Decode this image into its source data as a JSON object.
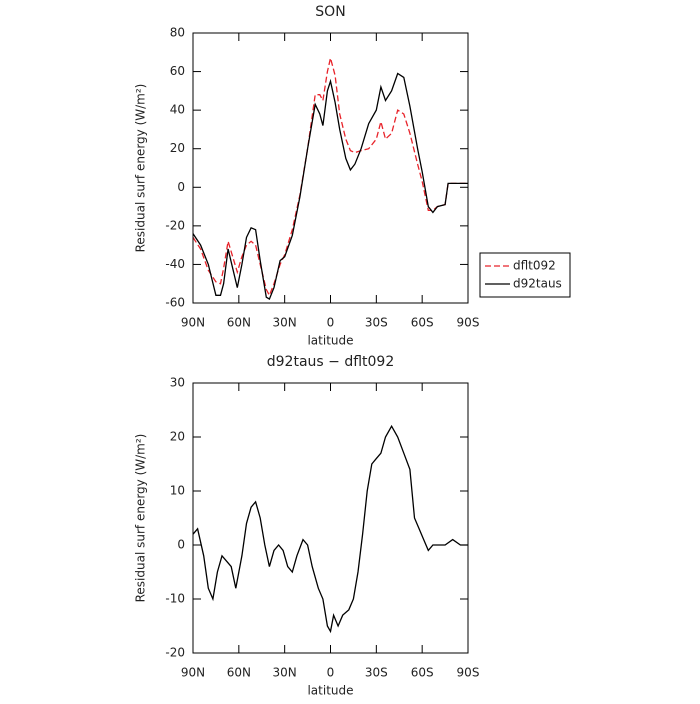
{
  "chart_data": [
    {
      "type": "line",
      "title": "SON",
      "xlabel": "latitude",
      "ylabel": "Residual surf energy (W/m²)",
      "x": [
        90,
        85,
        80,
        75,
        72,
        70,
        67,
        64,
        61,
        58,
        55,
        52,
        49,
        46,
        42,
        40,
        37,
        33,
        30,
        25,
        20,
        15,
        10,
        7,
        5,
        2,
        0,
        -3,
        -6,
        -10,
        -13,
        -16,
        -20,
        -25,
        -30,
        -33,
        -36,
        -40,
        -44,
        -48,
        -52,
        -57,
        -60,
        -64,
        -67,
        -70,
        -75,
        -77,
        -85,
        -90
      ],
      "series": [
        {
          "name": "dflt092",
          "color": "#e8232a",
          "dash": true,
          "values": [
            -26,
            -32,
            -43,
            -49,
            -50,
            -42,
            -28,
            -36,
            -44,
            -36,
            -30,
            -28,
            -30,
            -40,
            -53,
            -56,
            -50,
            -40,
            -35,
            -22,
            -4,
            20,
            48,
            48,
            45,
            60,
            67,
            58,
            38,
            25,
            19,
            18,
            19,
            20,
            25,
            34,
            25,
            28,
            40,
            38,
            28,
            12,
            3,
            -12,
            -12,
            -10,
            -9,
            2,
            2,
            2
          ]
        },
        {
          "name": "d92taus",
          "color": "#000000",
          "dash": false,
          "values": [
            -24,
            -30,
            -40,
            -56,
            -56,
            -50,
            -32,
            -42,
            -52,
            -40,
            -26,
            -21,
            -22,
            -38,
            -57,
            -58,
            -52,
            -38,
            -36,
            -25,
            -5,
            20,
            43,
            38,
            32,
            50,
            55,
            44,
            30,
            15,
            9,
            12,
            20,
            33,
            40,
            52,
            45,
            50,
            59,
            57,
            42,
            20,
            8,
            -10,
            -13,
            -10,
            -9,
            2,
            2,
            2
          ]
        }
      ],
      "xlim": [
        90,
        -90
      ],
      "xticks": [
        {
          "value": 90,
          "label": "90N"
        },
        {
          "value": 60,
          "label": "60N"
        },
        {
          "value": 30,
          "label": "30N"
        },
        0,
        {
          "value": -30,
          "label": "30S"
        },
        {
          "value": -60,
          "label": "60S"
        },
        {
          "value": -90,
          "label": "90S"
        }
      ],
      "ylim": [
        -60,
        80
      ],
      "yticks": [
        -60,
        -40,
        -20,
        0,
        20,
        40,
        60,
        80
      ],
      "legend": "outside-right"
    },
    {
      "type": "line",
      "title": "d92taus − dflt092",
      "xlabel": "latitude",
      "ylabel": "Residual surf energy (W/m²)",
      "x": [
        90,
        87,
        83,
        80,
        77,
        74,
        71,
        68,
        65,
        62,
        58,
        55,
        52,
        49,
        46,
        43,
        40,
        37,
        34,
        31,
        28,
        25,
        22,
        18,
        15,
        12,
        8,
        5,
        2,
        0,
        -2,
        -5,
        -8,
        -12,
        -15,
        -18,
        -21,
        -24,
        -27,
        -30,
        -33,
        -36,
        -40,
        -44,
        -48,
        -52,
        -55,
        -58,
        -61,
        -64,
        -67,
        -70,
        -75,
        -80,
        -85,
        -90
      ],
      "values": [
        2,
        3,
        -2,
        -8,
        -10,
        -5,
        -2,
        -3,
        -4,
        -8,
        -2,
        4,
        7,
        8,
        5,
        0,
        -4,
        -1,
        0,
        -1,
        -4,
        -5,
        -2,
        1,
        0,
        -4,
        -8,
        -10,
        -15,
        -16,
        -13,
        -15,
        -13,
        -12,
        -10,
        -5,
        2,
        10,
        15,
        16,
        17,
        20,
        22,
        20,
        17,
        14,
        5,
        3,
        1,
        -1,
        0,
        0,
        0,
        1,
        0,
        0
      ],
      "color": "#000000",
      "xlim": [
        90,
        -90
      ],
      "xticks": [
        {
          "value": 90,
          "label": "90N"
        },
        {
          "value": 60,
          "label": "60N"
        },
        {
          "value": 30,
          "label": "30N"
        },
        0,
        {
          "value": -30,
          "label": "30S"
        },
        {
          "value": -60,
          "label": "60S"
        },
        {
          "value": -90,
          "label": "90S"
        }
      ],
      "ylim": [
        -20,
        30
      ],
      "yticks": [
        -20,
        -10,
        0,
        10,
        20,
        30
      ]
    }
  ]
}
